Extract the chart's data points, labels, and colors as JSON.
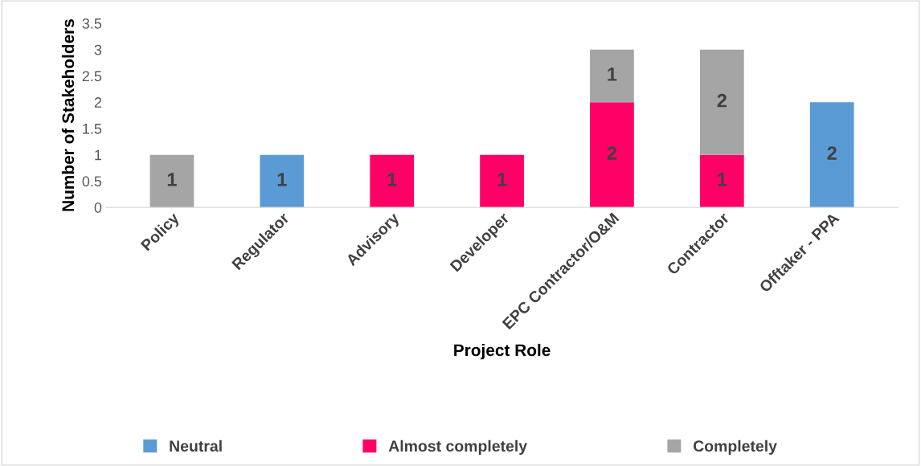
{
  "chart_data": {
    "type": "bar",
    "stacked": true,
    "xlabel": "Project Role",
    "ylabel": "Number of Stakeholders",
    "categories": [
      "Policy",
      "Regulator",
      "Advisory",
      "Developer",
      "EPC Contractor/O&M",
      "Contractor",
      "Offtaker - PPA"
    ],
    "series": [
      {
        "name": "Neutral",
        "color": "#5b9bd5",
        "values": [
          null,
          1,
          null,
          null,
          null,
          null,
          2
        ],
        "value_labels": [
          null,
          "1",
          null,
          null,
          null,
          null,
          "2"
        ]
      },
      {
        "name": "Almost completely",
        "color": "#ff0066",
        "values": [
          null,
          null,
          1,
          1,
          2,
          1,
          null
        ],
        "value_labels": [
          null,
          null,
          "1",
          "1",
          "2",
          "1",
          null
        ]
      },
      {
        "name": "Completely",
        "color": "#a5a5a5",
        "values": [
          1,
          null,
          null,
          null,
          1,
          2,
          null
        ],
        "value_labels": [
          "1",
          null,
          null,
          null,
          "1",
          "2",
          null
        ]
      }
    ],
    "ylim": [
      0,
      3.5
    ],
    "yticks": [
      0,
      0.5,
      1,
      1.5,
      2,
      2.5,
      3,
      3.5
    ],
    "grid": false,
    "legend": "bottom"
  }
}
